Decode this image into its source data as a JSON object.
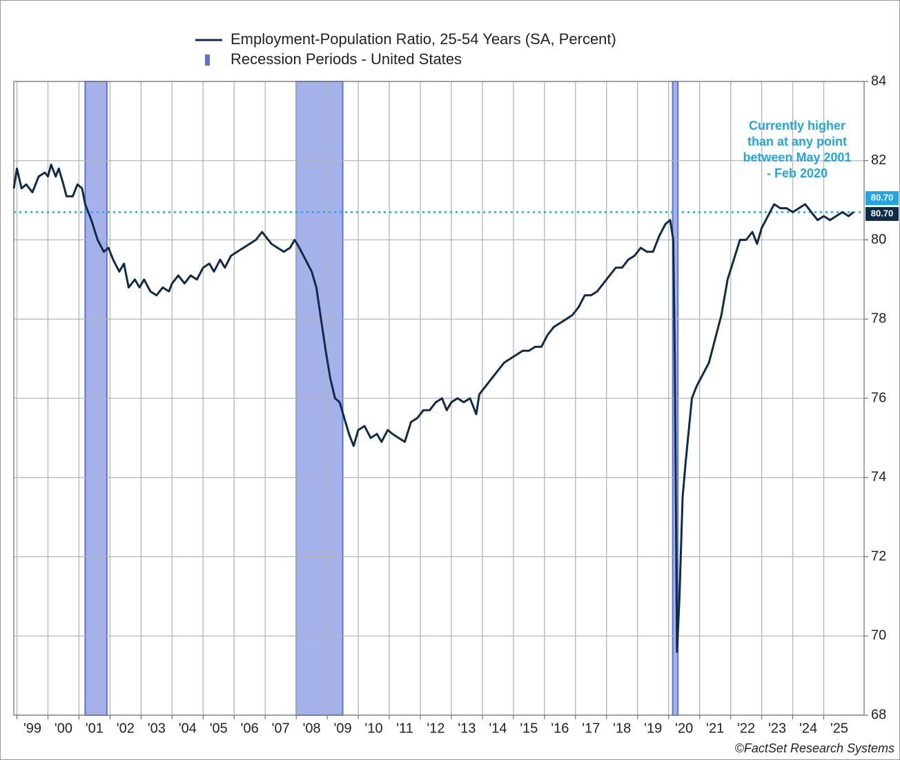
{
  "chart_data": {
    "type": "line",
    "series": [
      {
        "name": "Employment-Population Ratio, 25-54 Years (SA, Percent)",
        "color": "#0d2b4a",
        "x": [
          1998.9,
          1999.0,
          1999.15,
          1999.3,
          1999.5,
          1999.7,
          1999.9,
          2000.0,
          2000.1,
          2000.25,
          2000.35,
          2000.5,
          2000.6,
          2000.8,
          2000.95,
          2001.1,
          2001.2,
          2001.4,
          2001.6,
          2001.8,
          2001.95,
          2002.1,
          2002.3,
          2002.45,
          2002.6,
          2002.8,
          2002.95,
          2003.1,
          2003.3,
          2003.5,
          2003.7,
          2003.9,
          2004.0,
          2004.2,
          2004.4,
          2004.6,
          2004.8,
          2005.0,
          2005.2,
          2005.35,
          2005.55,
          2005.7,
          2005.9,
          2006.1,
          2006.3,
          2006.5,
          2006.7,
          2006.9,
          2007.0,
          2007.2,
          2007.4,
          2007.6,
          2007.8,
          2007.95,
          2008.1,
          2008.3,
          2008.5,
          2008.65,
          2008.8,
          2008.95,
          2009.1,
          2009.25,
          2009.4,
          2009.55,
          2009.7,
          2009.85,
          2010.0,
          2010.2,
          2010.4,
          2010.6,
          2010.75,
          2010.95,
          2011.1,
          2011.3,
          2011.5,
          2011.7,
          2011.9,
          2012.1,
          2012.3,
          2012.5,
          2012.7,
          2012.85,
          2013.0,
          2013.2,
          2013.4,
          2013.6,
          2013.8,
          2013.9,
          2014.1,
          2014.3,
          2014.5,
          2014.7,
          2014.9,
          2015.1,
          2015.3,
          2015.5,
          2015.7,
          2015.9,
          2016.1,
          2016.3,
          2016.5,
          2016.7,
          2016.9,
          2017.1,
          2017.3,
          2017.5,
          2017.7,
          2017.9,
          2018.1,
          2018.3,
          2018.5,
          2018.7,
          2018.9,
          2019.1,
          2019.3,
          2019.5,
          2019.7,
          2019.9,
          2020.05,
          2020.15,
          2020.2,
          2020.27,
          2020.35,
          2020.45,
          2020.55,
          2020.65,
          2020.75,
          2020.9,
          2021.1,
          2021.3,
          2021.5,
          2021.7,
          2021.9,
          2022.1,
          2022.3,
          2022.5,
          2022.7,
          2022.85,
          2023.0,
          2023.2,
          2023.4,
          2023.6,
          2023.8,
          2024.0,
          2024.2,
          2024.4,
          2024.6,
          2024.8,
          2025.0,
          2025.2,
          2025.4,
          2025.6,
          2025.8,
          2025.95
        ],
        "values": [
          81.3,
          81.8,
          81.3,
          81.4,
          81.2,
          81.6,
          81.7,
          81.6,
          81.9,
          81.6,
          81.8,
          81.4,
          81.1,
          81.1,
          81.4,
          81.3,
          80.9,
          80.5,
          80.0,
          79.7,
          79.8,
          79.5,
          79.2,
          79.4,
          78.8,
          79.0,
          78.8,
          79.0,
          78.7,
          78.6,
          78.8,
          78.7,
          78.9,
          79.1,
          78.9,
          79.1,
          79.0,
          79.3,
          79.4,
          79.2,
          79.5,
          79.3,
          79.6,
          79.7,
          79.8,
          79.9,
          80.0,
          80.2,
          80.1,
          79.9,
          79.8,
          79.7,
          79.8,
          80.0,
          79.8,
          79.5,
          79.2,
          78.8,
          78.0,
          77.2,
          76.5,
          76.0,
          75.9,
          75.5,
          75.1,
          74.8,
          75.2,
          75.3,
          75.0,
          75.1,
          74.9,
          75.2,
          75.1,
          75.0,
          74.9,
          75.4,
          75.5,
          75.7,
          75.7,
          75.9,
          76.0,
          75.7,
          75.9,
          76.0,
          75.9,
          76.0,
          75.6,
          76.1,
          76.3,
          76.5,
          76.7,
          76.9,
          77.0,
          77.1,
          77.2,
          77.2,
          77.3,
          77.3,
          77.6,
          77.8,
          77.9,
          78.0,
          78.1,
          78.3,
          78.6,
          78.6,
          78.7,
          78.9,
          79.1,
          79.3,
          79.3,
          79.5,
          79.6,
          79.8,
          79.7,
          79.7,
          80.1,
          80.4,
          80.5,
          80.0,
          77.0,
          69.6,
          71.0,
          73.5,
          74.4,
          75.2,
          76.0,
          76.3,
          76.6,
          76.9,
          77.5,
          78.1,
          79.0,
          79.5,
          80.0,
          80.0,
          80.2,
          79.9,
          80.3,
          80.6,
          80.9,
          80.8,
          80.8,
          80.7,
          80.8,
          80.9,
          80.7,
          80.5,
          80.6,
          80.5,
          80.6,
          80.7,
          80.6,
          80.7
        ]
      }
    ],
    "recessions": {
      "name": "Recession Periods - United States",
      "color": "#5b73d9",
      "periods": [
        [
          2001.2,
          2001.9
        ],
        [
          2008.0,
          2009.5
        ],
        [
          2020.13,
          2020.3
        ]
      ]
    },
    "reference_line": {
      "value": 80.7,
      "label": "80.70",
      "color": "#1ea7e8"
    },
    "annotation": [
      "Currently higher",
      "than at any point",
      "between May 2001",
      "- Feb 2020"
    ],
    "credit": "©FactSet Research Systems",
    "xlim": [
      1998.9,
      2026.3
    ],
    "xticks": [
      {
        "value": 1999,
        "label": "'99"
      },
      {
        "value": 2000,
        "label": "'00"
      },
      {
        "value": 2001,
        "label": "'01"
      },
      {
        "value": 2002,
        "label": "'02"
      },
      {
        "value": 2003,
        "label": "'03"
      },
      {
        "value": 2004,
        "label": "'04"
      },
      {
        "value": 2005,
        "label": "'05"
      },
      {
        "value": 2006,
        "label": "'06"
      },
      {
        "value": 2007,
        "label": "'07"
      },
      {
        "value": 2008,
        "label": "'08"
      },
      {
        "value": 2009,
        "label": "'09"
      },
      {
        "value": 2010,
        "label": "'10"
      },
      {
        "value": 2011,
        "label": "'11"
      },
      {
        "value": 2012,
        "label": "'12"
      },
      {
        "value": 2013,
        "label": "'13"
      },
      {
        "value": 2014,
        "label": "'14"
      },
      {
        "value": 2015,
        "label": "'15"
      },
      {
        "value": 2016,
        "label": "'16"
      },
      {
        "value": 2017,
        "label": "'17"
      },
      {
        "value": 2018,
        "label": "'18"
      },
      {
        "value": 2019,
        "label": "'19"
      },
      {
        "value": 2020,
        "label": "'20"
      },
      {
        "value": 2021,
        "label": "'21"
      },
      {
        "value": 2022,
        "label": "'22"
      },
      {
        "value": 2023,
        "label": "'23"
      },
      {
        "value": 2024,
        "label": "'24"
      },
      {
        "value": 2025,
        "label": "'25"
      }
    ],
    "ylim": [
      68,
      84
    ],
    "yticks": [
      68,
      70,
      72,
      74,
      76,
      78,
      80,
      82,
      84
    ],
    "grid": true
  }
}
